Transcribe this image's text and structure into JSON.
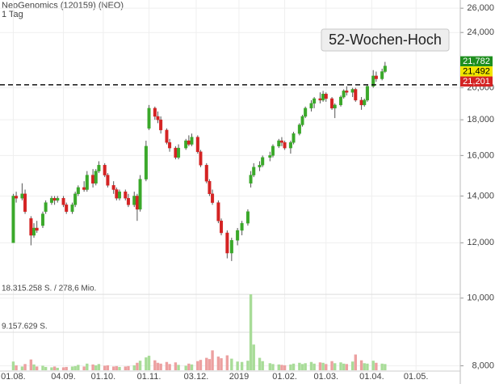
{
  "chart_data": {
    "type": "candlestick",
    "title": "NeoGenomics (120159) (NEO)",
    "subtitle": "1 Tag",
    "annotation": "52-Wochen-Hoch",
    "x": [
      "2018-08-01",
      "2018-08-03",
      "2018-08-07",
      "2018-08-09",
      "2018-08-13",
      "2018-08-15",
      "2018-08-17",
      "2018-08-21",
      "2018-08-23",
      "2018-08-27",
      "2018-08-29",
      "2018-08-31",
      "2018-09-04",
      "2018-09-06",
      "2018-09-10",
      "2018-09-12",
      "2018-09-14",
      "2018-09-18",
      "2018-09-20",
      "2018-09-24",
      "2018-09-26",
      "2018-09-28",
      "2018-10-02",
      "2018-10-04",
      "2018-10-08",
      "2018-10-10",
      "2018-10-12",
      "2018-10-16",
      "2018-10-18",
      "2018-10-22",
      "2018-10-24",
      "2018-10-26",
      "2018-10-30",
      "2018-11-01",
      "2018-11-05",
      "2018-11-07",
      "2018-11-09",
      "2018-11-13",
      "2018-11-15",
      "2018-11-19",
      "2018-11-21",
      "2018-11-26",
      "2018-11-28",
      "2018-11-30",
      "2018-12-04",
      "2018-12-06",
      "2018-12-10",
      "2018-12-12",
      "2018-12-14",
      "2018-12-18",
      "2018-12-20",
      "2018-12-24",
      "2018-12-27",
      "2018-12-31",
      "2019-01-03",
      "2019-01-07",
      "2019-01-09",
      "2019-01-11",
      "2019-01-15",
      "2019-01-17",
      "2019-01-22",
      "2019-01-24",
      "2019-01-28",
      "2019-01-30",
      "2019-02-01",
      "2019-02-05",
      "2019-02-07",
      "2019-02-11",
      "2019-02-13",
      "2019-02-15",
      "2019-02-19",
      "2019-02-21",
      "2019-02-25",
      "2019-02-27",
      "2019-03-01",
      "2019-03-05",
      "2019-03-07",
      "2019-03-11",
      "2019-03-13",
      "2019-03-15",
      "2019-03-19",
      "2019-03-21",
      "2019-03-25",
      "2019-03-27",
      "2019-03-29",
      "2019-04-02",
      "2019-04-04",
      "2019-04-08",
      "2019-04-10"
    ],
    "open": [
      12000,
      14000,
      13900,
      14100,
      13000,
      12300,
      12600,
      12700,
      13300,
      13700,
      13900,
      13800,
      13900,
      13600,
      13300,
      13600,
      14100,
      14400,
      14300,
      15000,
      14600,
      15200,
      15500,
      15000,
      14500,
      14300,
      13900,
      14200,
      13900,
      13600,
      14000,
      13400,
      14800,
      17500,
      18700,
      18200,
      18000,
      17400,
      16700,
      16400,
      15900,
      16400,
      16800,
      16600,
      17000,
      16200,
      15500,
      14700,
      14100,
      13700,
      12900,
      12400,
      11600,
      12100,
      12500,
      12800,
      14600,
      15000,
      15400,
      15500,
      15900,
      16000,
      16500,
      16800,
      16700,
      16400,
      16700,
      17200,
      17700,
      18200,
      18700,
      19000,
      19300,
      19200,
      19600,
      19300,
      18700,
      18900,
      19400,
      19800,
      19700,
      19900,
      19200,
      18900,
      19200,
      20100,
      20800,
      20600,
      21100
    ],
    "high": [
      14100,
      14200,
      14600,
      14300,
      13100,
      12800,
      12900,
      13300,
      13800,
      14000,
      14000,
      14000,
      14000,
      13700,
      13700,
      14200,
      14500,
      14700,
      15200,
      15300,
      15300,
      15700,
      15600,
      15100,
      14700,
      14400,
      14300,
      14300,
      14100,
      14200,
      14100,
      15000,
      16800,
      18900,
      18800,
      18500,
      18200,
      17500,
      16900,
      16500,
      16600,
      16900,
      17100,
      17200,
      17100,
      16300,
      15600,
      14800,
      14300,
      13800,
      13000,
      12500,
      12200,
      12600,
      12900,
      13400,
      15200,
      15600,
      15700,
      16000,
      16200,
      16600,
      16900,
      17000,
      16800,
      16800,
      17300,
      17800,
      18300,
      18800,
      19200,
      19400,
      19700,
      19800,
      19700,
      19400,
      19000,
      19500,
      19900,
      20100,
      20000,
      20000,
      19400,
      19300,
      20200,
      21200,
      21100,
      21300,
      21782
    ],
    "low": [
      12000,
      13700,
      13800,
      13200,
      11900,
      12200,
      12400,
      12600,
      13200,
      13600,
      13600,
      13700,
      13500,
      13200,
      13200,
      13500,
      14000,
      14200,
      14200,
      14400,
      14500,
      15100,
      14900,
      14400,
      14100,
      13800,
      13800,
      13800,
      13500,
      13500,
      12900,
      13300,
      14700,
      17400,
      18000,
      17800,
      17200,
      16600,
      16200,
      15800,
      15800,
      16300,
      16500,
      16500,
      16100,
      15400,
      14600,
      14000,
      13600,
      12800,
      12300,
      11400,
      11300,
      11900,
      12300,
      12700,
      14400,
      14900,
      15200,
      15400,
      15700,
      15900,
      16400,
      16500,
      16300,
      16100,
      16600,
      17100,
      17600,
      18100,
      18500,
      18700,
      19000,
      19100,
      19100,
      18600,
      18100,
      18800,
      19300,
      19500,
      19400,
      19100,
      18600,
      18800,
      19100,
      20000,
      20400,
      20500,
      21000
    ],
    "close": [
      14000,
      13900,
      14100,
      13300,
      12300,
      12600,
      12500,
      13200,
      13700,
      13900,
      13800,
      13900,
      13600,
      13300,
      13600,
      14100,
      14400,
      14300,
      15000,
      14600,
      15200,
      15500,
      15000,
      14500,
      14300,
      13900,
      14200,
      13900,
      13600,
      14000,
      13400,
      14800,
      16500,
      18700,
      18200,
      18000,
      17400,
      16700,
      16400,
      15900,
      16400,
      16800,
      16600,
      17000,
      16200,
      15500,
      14700,
      14100,
      13700,
      12900,
      12400,
      11600,
      12100,
      12500,
      12800,
      13300,
      15000,
      15400,
      15500,
      15900,
      16000,
      16500,
      16800,
      16700,
      16400,
      16700,
      17200,
      17700,
      18200,
      18700,
      19000,
      19300,
      19200,
      19600,
      19300,
      18700,
      18900,
      19400,
      19800,
      19700,
      19900,
      19200,
      18900,
      19200,
      20100,
      20800,
      20600,
      21100,
      21492
    ],
    "volume": [
      2100000,
      1200000,
      900000,
      1500000,
      2600000,
      1400000,
      900000,
      1100000,
      800000,
      700000,
      900000,
      600000,
      700000,
      800000,
      900000,
      1000000,
      1300000,
      900000,
      1600000,
      1400000,
      1200000,
      1500000,
      1100000,
      1200000,
      900000,
      1000000,
      800000,
      900000,
      1000000,
      1200000,
      1800000,
      2300000,
      3100000,
      3500000,
      2400000,
      1800000,
      1600000,
      2000000,
      1500000,
      1900000,
      1300000,
      1100000,
      1600000,
      1400000,
      2200000,
      2500000,
      3000000,
      2700000,
      4800000,
      3300000,
      2900000,
      3600000,
      2800000,
      2100000,
      2000000,
      2300000,
      18315258,
      6200000,
      3000000,
      2200000,
      1700000,
      1500000,
      1400000,
      1300000,
      1200000,
      1400000,
      1600000,
      1800000,
      1500000,
      1700000,
      2000000,
      1600000,
      1900000,
      1800000,
      1500000,
      2200000,
      1700000,
      1900000,
      1600000,
      1500000,
      2100000,
      3800000,
      2400000,
      1700000,
      1600000,
      2300000,
      1800000,
      1600000,
      1500000
    ],
    "up_color": "#3aa82a",
    "down_color": "#d42323",
    "up_volume_color": "#a8dc98",
    "down_volume_color": "#eca0a0",
    "log_scale": true,
    "grid": true,
    "ylim": [
      7800,
      26500
    ],
    "yticks": [
      {
        "value": 26000,
        "label": "26,000"
      },
      {
        "value": 24000,
        "label": "24,000"
      },
      {
        "value": 20000,
        "label": "20,000"
      },
      {
        "value": 18000,
        "label": "18,000"
      },
      {
        "value": 16000,
        "label": "16,000"
      },
      {
        "value": 14000,
        "label": "14,000"
      },
      {
        "value": 12000,
        "label": "12,000"
      },
      {
        "value": 10000,
        "label": "10,000"
      },
      {
        "value": 8000,
        "label": "8,000"
      }
    ],
    "xlim": [
      "2018-07-23",
      "2019-05-31"
    ],
    "xticks": [
      {
        "value": "2018-08-01",
        "label": "01.08."
      },
      {
        "value": "2018-09-04",
        "label": "04.09."
      },
      {
        "value": "2018-10-01",
        "label": "01.10."
      },
      {
        "value": "2018-11-01",
        "label": "01.11."
      },
      {
        "value": "2018-12-03",
        "label": "03.12."
      },
      {
        "value": "2019-01-01",
        "label": "2019"
      },
      {
        "value": "2019-02-01",
        "label": "01.02."
      },
      {
        "value": "2019-03-01",
        "label": "01.03."
      },
      {
        "value": "2019-04-01",
        "label": "01.04."
      },
      {
        "value": "2019-05-01",
        "label": "01.05."
      }
    ],
    "volume_lim": [
      0,
      19500000
    ],
    "volume_ticks": [
      {
        "value": 18315258,
        "label": "18.315.258 S. / 278,6 Mio."
      },
      {
        "value": 9157629,
        "label": "9.157.629 S."
      }
    ],
    "reference_line": 20200,
    "price_labels": [
      {
        "value": 21782,
        "label": "21,782",
        "color": "#1f8f1f",
        "text_color": "#ffffff"
      },
      {
        "value": 21492,
        "label": "21,492",
        "color": "#f2e600",
        "text_color": "#000000"
      },
      {
        "value": 21201,
        "label": "21,201",
        "color": "#d42323",
        "text_color": "#ffffff"
      }
    ]
  }
}
